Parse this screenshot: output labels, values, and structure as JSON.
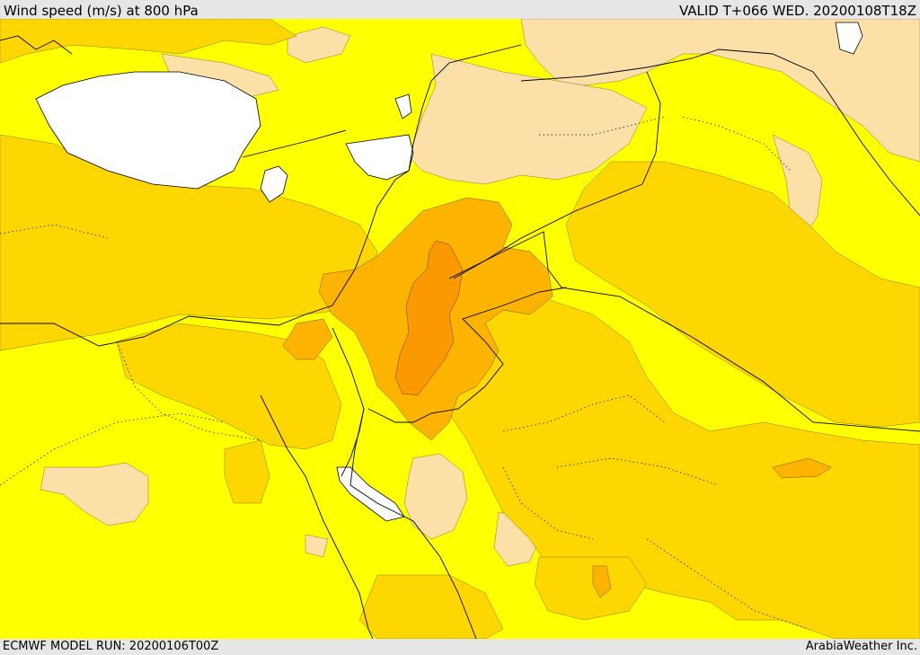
{
  "header": {
    "title": "Wind speed (m/s) at 800 hPa",
    "valid": "VALID T+066 WED. 20200108T18Z"
  },
  "footer": {
    "model_run": "ECMWF MODEL RUN: 20200106T00Z",
    "credit": "ArabiaWeather Inc."
  },
  "colors": {
    "sea": "#ffffff",
    "low": "#fde0a8",
    "base": "#ffff00",
    "mid": "#ffd700",
    "high": "#fdb400",
    "peak": "#fa9a00",
    "lines": "#000000"
  }
}
